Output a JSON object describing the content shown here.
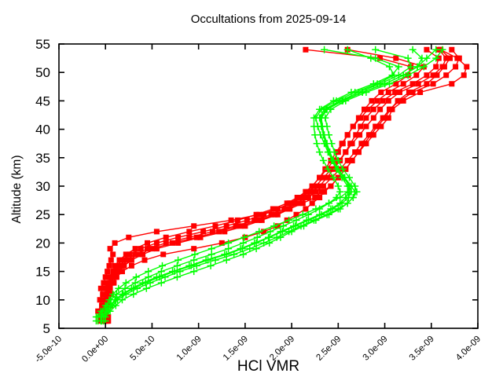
{
  "window": {
    "background": "#ffffff"
  },
  "chart_data": {
    "type": "line",
    "title": "Occultations from 2025-09-14",
    "xlabel": "HCl VMR",
    "ylabel": "Altitude (km)",
    "grid": false,
    "legend": "none",
    "x_range_1e9": [
      -0.5,
      4.0
    ],
    "y_range_km": [
      5,
      55
    ],
    "x_ticks": [
      {
        "v": -0.5,
        "label": "-5.0e-10"
      },
      {
        "v": 0.0,
        "label": "0.0e+00"
      },
      {
        "v": 0.5,
        "label": "5.0e-10"
      },
      {
        "v": 1.0,
        "label": "1.0e-09"
      },
      {
        "v": 1.5,
        "label": "1.5e-09"
      },
      {
        "v": 2.0,
        "label": "2.0e-09"
      },
      {
        "v": 2.5,
        "label": "2.5e-09"
      },
      {
        "v": 3.0,
        "label": "3.0e-09"
      },
      {
        "v": 3.5,
        "label": "3.5e-09"
      },
      {
        "v": 4.0,
        "label": "4.0e-09"
      }
    ],
    "y_ticks": [
      {
        "v": 5,
        "label": "5"
      },
      {
        "v": 10,
        "label": "10"
      },
      {
        "v": 15,
        "label": "15"
      },
      {
        "v": 20,
        "label": "20"
      },
      {
        "v": 25,
        "label": "25"
      },
      {
        "v": 30,
        "label": "30"
      },
      {
        "v": 35,
        "label": "35"
      },
      {
        "v": 40,
        "label": "40"
      },
      {
        "v": 45,
        "label": "45"
      },
      {
        "v": 50,
        "label": "50"
      },
      {
        "v": 55,
        "label": "55"
      }
    ],
    "colors": {
      "red_series": "#ff0000",
      "green_series": "#00ff00",
      "axis": "#000000",
      "text": "#000000"
    },
    "altitudes_km": [
      6.3,
      7,
      8,
      9,
      10,
      11,
      12,
      13,
      14,
      15,
      16,
      17,
      18,
      19,
      20,
      21,
      22,
      23,
      24,
      25,
      26,
      27,
      28,
      29,
      30,
      31.5,
      33,
      34.5,
      36,
      37.5,
      39,
      40.5,
      42,
      43.5,
      45,
      46.5,
      48,
      49.5,
      51,
      52.5,
      54
    ],
    "series": [
      {
        "name": "red-profile-1",
        "color": "#ff0000",
        "marker": "square",
        "vmr_1e9": [
          0.0,
          0.0,
          -0.03,
          0.02,
          0.0,
          0.03,
          0.02,
          0.05,
          0.08,
          0.1,
          0.15,
          0.22,
          0.32,
          0.45,
          0.65,
          0.9,
          1.15,
          1.4,
          1.6,
          1.78,
          1.92,
          2.05,
          2.15,
          2.22,
          2.3,
          2.38,
          2.45,
          2.52,
          2.58,
          2.63,
          2.69,
          2.74,
          2.8,
          2.88,
          2.98,
          3.11,
          3.3,
          3.45,
          3.55,
          3.58,
          3.45
        ]
      },
      {
        "name": "red-profile-2",
        "color": "#ff0000",
        "marker": "square",
        "vmr_1e9": [
          0.02,
          0.02,
          0.0,
          0.04,
          0.03,
          0.06,
          0.04,
          0.08,
          0.12,
          0.18,
          0.28,
          0.42,
          0.62,
          0.95,
          1.25,
          1.5,
          1.7,
          1.85,
          1.95,
          2.05,
          2.15,
          2.22,
          2.3,
          2.35,
          2.42,
          2.5,
          2.58,
          2.65,
          2.72,
          2.8,
          2.88,
          2.96,
          3.04,
          3.08,
          3.2,
          3.38,
          3.72,
          3.85,
          3.88,
          3.78,
          3.6
        ]
      },
      {
        "name": "red-profile-3",
        "color": "#ff0000",
        "marker": "square",
        "vmr_1e9": [
          -0.02,
          -0.02,
          -0.05,
          0.0,
          -0.02,
          0.02,
          0.0,
          0.03,
          0.05,
          0.08,
          0.1,
          0.15,
          0.22,
          0.32,
          0.45,
          0.65,
          0.9,
          1.18,
          1.42,
          1.62,
          1.8,
          1.95,
          2.06,
          2.15,
          2.22,
          2.3,
          2.38,
          2.45,
          2.5,
          2.55,
          2.6,
          2.66,
          2.72,
          2.78,
          2.86,
          2.96,
          3.12,
          3.25,
          3.28,
          2.95,
          2.15
        ]
      },
      {
        "name": "red-profile-4",
        "color": "#ff0000",
        "marker": "square",
        "vmr_1e9": [
          0.03,
          0.03,
          0.01,
          0.05,
          0.02,
          0.06,
          0.05,
          0.09,
          0.11,
          0.14,
          0.2,
          0.28,
          0.4,
          0.55,
          0.78,
          1.02,
          1.28,
          1.5,
          1.68,
          1.85,
          1.98,
          2.12,
          2.25,
          2.32,
          2.42,
          2.5,
          2.58,
          2.65,
          2.72,
          2.78,
          2.85,
          2.92,
          3.0,
          3.06,
          3.14,
          3.26,
          3.45,
          3.56,
          3.64,
          3.7,
          3.6
        ]
      },
      {
        "name": "red-profile-5",
        "color": "#ff0000",
        "marker": "square",
        "vmr_1e9": [
          -0.01,
          -0.01,
          -0.04,
          0.01,
          -0.01,
          0.02,
          0.01,
          0.04,
          0.06,
          0.09,
          0.12,
          0.18,
          0.26,
          0.38,
          0.55,
          0.78,
          1.05,
          1.3,
          1.52,
          1.7,
          1.85,
          1.98,
          2.08,
          2.15,
          2.22,
          2.3,
          2.36,
          2.42,
          2.48,
          2.54,
          2.6,
          2.66,
          2.74,
          2.82,
          2.92,
          3.04,
          3.2,
          3.34,
          3.42,
          3.12,
          2.6
        ]
      },
      {
        "name": "red-profile-6",
        "color": "#ff0000",
        "marker": "square",
        "vmr_1e9": [
          0.01,
          0.01,
          -0.02,
          0.03,
          0.01,
          0.04,
          0.03,
          0.06,
          0.09,
          0.12,
          0.17,
          0.25,
          0.36,
          0.5,
          0.72,
          0.98,
          1.22,
          1.45,
          1.65,
          1.82,
          1.96,
          2.08,
          2.18,
          2.26,
          2.34,
          2.43,
          2.52,
          2.6,
          2.68,
          2.75,
          2.83,
          2.9,
          2.98,
          3.05,
          3.16,
          3.3,
          3.52,
          3.66,
          3.76,
          3.8,
          3.72
        ]
      },
      {
        "name": "red-profile-7",
        "color": "#ff0000",
        "marker": "square",
        "vmr_1e9": [
          -0.06,
          -0.06,
          -0.08,
          -0.04,
          -0.06,
          -0.03,
          -0.05,
          -0.02,
          0.0,
          0.02,
          0.04,
          0.06,
          0.08,
          0.05,
          0.1,
          0.25,
          0.55,
          0.95,
          1.35,
          1.65,
          1.85,
          2.0,
          2.1,
          2.18,
          2.26,
          2.34,
          2.43,
          2.51,
          2.58,
          2.65,
          2.73,
          2.8,
          2.88,
          2.95,
          3.04,
          3.16,
          3.36,
          3.52,
          3.62,
          3.66,
          3.58
        ]
      },
      {
        "name": "green-profile-1",
        "color": "#00ff00",
        "marker": "plus",
        "vmr_1e9": [
          -0.05,
          -0.05,
          0.0,
          0.05,
          0.1,
          0.18,
          0.28,
          0.4,
          0.55,
          0.72,
          0.9,
          1.08,
          1.28,
          1.45,
          1.6,
          1.75,
          1.88,
          2.02,
          2.16,
          2.3,
          2.42,
          2.52,
          2.58,
          2.62,
          2.6,
          2.54,
          2.48,
          2.43,
          2.4,
          2.37,
          2.34,
          2.32,
          2.3,
          2.35,
          2.52,
          2.72,
          2.95,
          3.15,
          3.28,
          3.25,
          2.9
        ]
      },
      {
        "name": "green-profile-2",
        "color": "#00ff00",
        "marker": "plus",
        "vmr_1e9": [
          -0.02,
          -0.02,
          0.03,
          0.08,
          0.13,
          0.22,
          0.34,
          0.48,
          0.64,
          0.8,
          0.98,
          1.18,
          1.38,
          1.55,
          1.7,
          1.84,
          1.97,
          2.1,
          2.24,
          2.38,
          2.5,
          2.6,
          2.66,
          2.7,
          2.68,
          2.62,
          2.55,
          2.5,
          2.46,
          2.43,
          2.4,
          2.38,
          2.36,
          2.42,
          2.58,
          2.8,
          3.05,
          3.25,
          3.42,
          3.55,
          3.62
        ]
      },
      {
        "name": "green-profile-3",
        "color": "#00ff00",
        "marker": "plus",
        "vmr_1e9": [
          -0.08,
          -0.08,
          -0.03,
          0.02,
          0.06,
          0.12,
          0.21,
          0.32,
          0.46,
          0.6,
          0.77,
          0.95,
          1.14,
          1.32,
          1.48,
          1.63,
          1.77,
          1.91,
          2.05,
          2.18,
          2.3,
          2.4,
          2.48,
          2.52,
          2.5,
          2.45,
          2.39,
          2.34,
          2.3,
          2.27,
          2.25,
          2.24,
          2.24,
          2.3,
          2.45,
          2.64,
          2.88,
          3.08,
          3.15,
          2.9,
          2.35
        ]
      },
      {
        "name": "green-profile-4",
        "color": "#00ff00",
        "marker": "plus",
        "vmr_1e9": [
          0.0,
          0.0,
          0.05,
          0.11,
          0.18,
          0.3,
          0.44,
          0.6,
          0.77,
          0.95,
          1.13,
          1.3,
          1.48,
          1.62,
          1.76,
          1.88,
          2.0,
          2.13,
          2.26,
          2.4,
          2.52,
          2.6,
          2.66,
          2.68,
          2.64,
          2.57,
          2.5,
          2.45,
          2.41,
          2.38,
          2.35,
          2.33,
          2.32,
          2.38,
          2.55,
          2.76,
          3.0,
          3.2,
          3.35,
          3.4,
          3.3
        ]
      },
      {
        "name": "green-profile-5",
        "color": "#00ff00",
        "marker": "plus",
        "vmr_1e9": [
          -0.1,
          -0.1,
          -0.05,
          0.0,
          0.04,
          0.08,
          0.14,
          0.22,
          0.33,
          0.46,
          0.61,
          0.78,
          0.96,
          1.14,
          1.32,
          1.49,
          1.65,
          1.81,
          1.97,
          2.12,
          2.26,
          2.4,
          2.52,
          2.6,
          2.62,
          2.57,
          2.5,
          2.44,
          2.39,
          2.35,
          2.31,
          2.28,
          2.26,
          2.32,
          2.48,
          2.68,
          2.92,
          3.1,
          3.05,
          2.85,
          2.6
        ]
      },
      {
        "name": "green-profile-6",
        "color": "#00ff00",
        "marker": "plus",
        "vmr_1e9": [
          -0.04,
          -0.04,
          0.01,
          0.06,
          0.11,
          0.19,
          0.3,
          0.43,
          0.58,
          0.74,
          0.92,
          1.1,
          1.3,
          1.47,
          1.62,
          1.76,
          1.9,
          2.04,
          2.18,
          2.32,
          2.44,
          2.54,
          2.61,
          2.64,
          2.62,
          2.56,
          2.49,
          2.44,
          2.4,
          2.37,
          2.34,
          2.32,
          2.31,
          2.37,
          2.54,
          2.76,
          3.0,
          3.2,
          3.35,
          3.45,
          3.55
        ]
      }
    ]
  }
}
